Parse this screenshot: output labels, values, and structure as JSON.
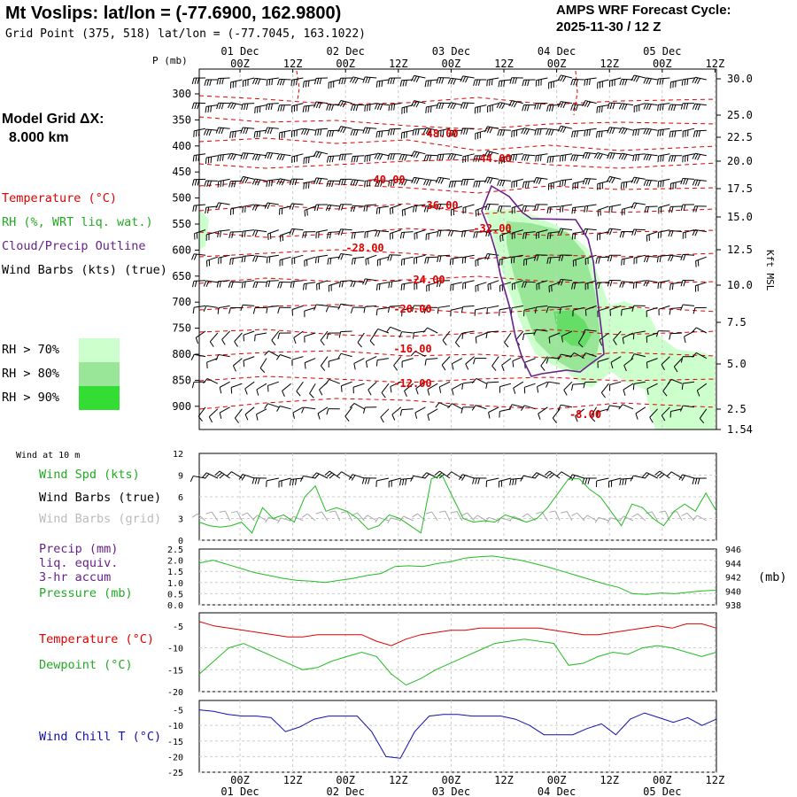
{
  "header": {
    "title": "Mt Voslips:  lat/lon = (-77.6900, 162.9800)",
    "grid_point": "Grid Point (375, 518) lat/lon = (-77.7045, 163.1022)",
    "cycle_line1": "AMPS WRF Forecast Cycle:",
    "cycle_line2": "2025-11-30 / 12  Z"
  },
  "model_grid": {
    "label": "Model Grid ΔX:",
    "value": "8.000 km"
  },
  "legend": {
    "temperature": "Temperature (°C)",
    "rh": "RH (%, WRT liq. wat.)",
    "cloud": "Cloud/Precip Outline",
    "wind": "Wind Barbs (kts) (true)",
    "rh_levels": [
      {
        "label": "RH > 70%",
        "color": "#ccffcc"
      },
      {
        "label": "RH > 80%",
        "color": "#99e699"
      },
      {
        "label": "RH > 90%",
        "color": "#33dd33"
      }
    ]
  },
  "time_axis": {
    "ticks": [
      "00Z",
      "12Z",
      "00Z",
      "12Z",
      "00Z",
      "12Z",
      "00Z",
      "12Z",
      "00Z",
      "12Z"
    ],
    "days": [
      "01 Dec",
      "02 Dec",
      "03 Dec",
      "04 Dec",
      "05 Dec"
    ]
  },
  "colors": {
    "temperature": "#dd0000",
    "rh_green": "#22bb22",
    "cloud": "#662288",
    "windchill": "#1111aa",
    "grey_barbs": "#aaaaaa"
  },
  "chart_data": [
    {
      "type": "line",
      "name": "cross-section",
      "pressure_axis_label": "P (mb)",
      "pressure_ticks": [
        "300",
        "350",
        "400",
        "450",
        "500",
        "550",
        "600",
        "650",
        "700",
        "750",
        "800",
        "850",
        "900"
      ],
      "height_axis_label": "Kft MSL",
      "height_ticks": [
        "30.0",
        "25.0",
        "22.5",
        "20.0",
        "17.5",
        "15.0",
        "12.5",
        "10.0",
        "7.5",
        "5.0",
        "2.5",
        "1.54"
      ],
      "isotherm_labels": [
        "-48.00",
        "-44.00",
        "-40.00",
        "-36.00",
        "-32.00",
        "-28.00",
        "-24.00",
        "-20.00",
        "-16.00",
        "-12.00",
        "-8.00"
      ]
    },
    {
      "type": "line",
      "name": "wind",
      "top_label": "Wind at 10 m",
      "series_labels": [
        "Wind Spd (kts)",
        "Wind Barbs (true)",
        "Wind Barbs (grid)"
      ],
      "yticks": [
        "12",
        "9",
        "6",
        "3",
        "0"
      ],
      "ylim": [
        0,
        12
      ],
      "values": [
        2.5,
        2.0,
        1.8,
        2.0,
        2.5,
        1.0,
        4.5,
        3.0,
        3.5,
        2.5,
        6.0,
        7.5,
        4.0,
        4.5,
        4.0,
        3.0,
        1.5,
        2.0,
        3.5,
        3.0,
        2.0,
        1.0,
        8.5,
        9.0,
        6.0,
        3.0,
        2.5,
        2.7,
        2.5,
        3.5,
        3.0,
        2.5,
        3.0,
        4.5,
        6.5,
        8.5,
        8.5,
        7.0,
        6.0,
        4.0,
        2.0,
        5.0,
        4.5,
        3.0,
        2.0,
        4.0,
        5.0,
        4.0,
        6.5,
        4.0
      ]
    },
    {
      "type": "line",
      "name": "precip-pressure",
      "series_labels": [
        "Precip (mm)",
        "liq. equiv.",
        "3-hr accum",
        "Pressure (mb)"
      ],
      "yticks_left": [
        "2.5",
        "2.0",
        "1.5",
        "1.0",
        "0.5",
        "0.0"
      ],
      "ylim_left": [
        0,
        2.5
      ],
      "yticks_right": [
        "946",
        "944",
        "942",
        "940",
        "938"
      ],
      "ylim_right": [
        938,
        946
      ],
      "unit_right": "(mb)",
      "pressure_values": [
        944.0,
        944.4,
        943.8,
        943.2,
        942.6,
        942.2,
        941.8,
        941.5,
        941.4,
        941.2,
        941.5,
        941.8,
        942.2,
        942.5,
        943.5,
        943.6,
        943.5,
        943.9,
        944.2,
        944.7,
        944.9,
        945.0,
        944.7,
        944.4,
        943.9,
        943.4,
        942.8,
        942.2,
        941.6,
        941.0,
        940.5,
        939.6,
        939.5,
        939.7,
        939.6,
        939.8,
        940.0,
        940.1
      ]
    },
    {
      "type": "line",
      "name": "temp-dewpoint",
      "series_labels": [
        "Temperature (°C)",
        "Dewpoint (°C)"
      ],
      "yticks": [
        "-5",
        "-10",
        "-15",
        "-20"
      ],
      "ylim": [
        -20,
        -2
      ],
      "temperature": [
        -4.0,
        -5.0,
        -5.5,
        -6.0,
        -6.5,
        -7.0,
        -7.5,
        -7.5,
        -7.0,
        -7.0,
        -7.0,
        -7.0,
        -8.5,
        -9.5,
        -8.0,
        -7.0,
        -6.5,
        -6.0,
        -6.0,
        -5.5,
        -5.5,
        -5.5,
        -5.5,
        -5.5,
        -6.0,
        -6.5,
        -7.0,
        -7.0,
        -6.5,
        -6.0,
        -5.5,
        -5.0,
        -5.5,
        -4.5,
        -4.5,
        -5.5
      ],
      "dewpoint": [
        -16.0,
        -13.0,
        -10.0,
        -9.0,
        -10.5,
        -12.0,
        -13.5,
        -15.0,
        -14.5,
        -13.0,
        -12.0,
        -11.0,
        -12.0,
        -16.0,
        -18.5,
        -17.0,
        -15.0,
        -13.5,
        -12.0,
        -10.5,
        -9.0,
        -8.5,
        -8.0,
        -8.5,
        -9.0,
        -14.0,
        -13.5,
        -12.0,
        -11.0,
        -11.5,
        -10.0,
        -9.5,
        -10.0,
        -11.0,
        -12.0,
        -11.0
      ]
    },
    {
      "type": "line",
      "name": "windchill",
      "series_labels": [
        "Wind Chill T (°C)"
      ],
      "yticks": [
        "-5",
        "-10",
        "-15",
        "-20",
        "-25"
      ],
      "ylim": [
        -25,
        -2
      ],
      "values": [
        -5.0,
        -5.5,
        -6.5,
        -7.0,
        -7.0,
        -7.5,
        -12.0,
        -10.5,
        -8.0,
        -7.0,
        -7.0,
        -7.0,
        -12.0,
        -20.0,
        -20.5,
        -12.0,
        -7.0,
        -6.5,
        -6.5,
        -7.0,
        -7.0,
        -7.0,
        -8.0,
        -10.0,
        -13.0,
        -13.0,
        -13.0,
        -11.0,
        -9.5,
        -13.0,
        -8.0,
        -6.0,
        -7.5,
        -9.0,
        -7.5,
        -10.0,
        -8.0
      ]
    }
  ]
}
